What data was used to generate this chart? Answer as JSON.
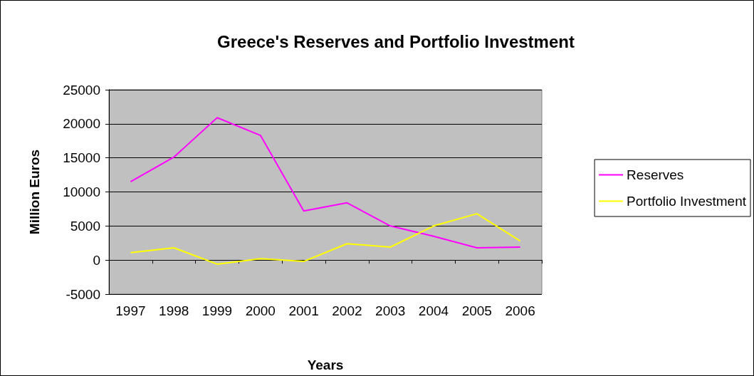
{
  "chart_data": {
    "type": "line",
    "title": "Greece's Reserves and Portfolio Investment",
    "xlabel": "Years",
    "ylabel": "Million Euros",
    "categories": [
      "1997",
      "1998",
      "1999",
      "2000",
      "2001",
      "2002",
      "2003",
      "2004",
      "2005",
      "2006"
    ],
    "series": [
      {
        "name": "Reserves",
        "color": "#ff00ff",
        "values": [
          11500,
          15100,
          20900,
          18300,
          7200,
          8400,
          5000,
          3500,
          1800,
          1900
        ]
      },
      {
        "name": "Portfolio Investment",
        "color": "#ffff00",
        "values": [
          1100,
          1800,
          -600,
          200,
          -200,
          2400,
          1900,
          5000,
          6800,
          2800
        ]
      }
    ],
    "ylim": [
      -5000,
      25000
    ],
    "yticks": [
      -5000,
      0,
      5000,
      10000,
      15000,
      20000,
      25000
    ],
    "grid": "y",
    "legend": "right",
    "marker": "none",
    "line_style": "solid"
  }
}
